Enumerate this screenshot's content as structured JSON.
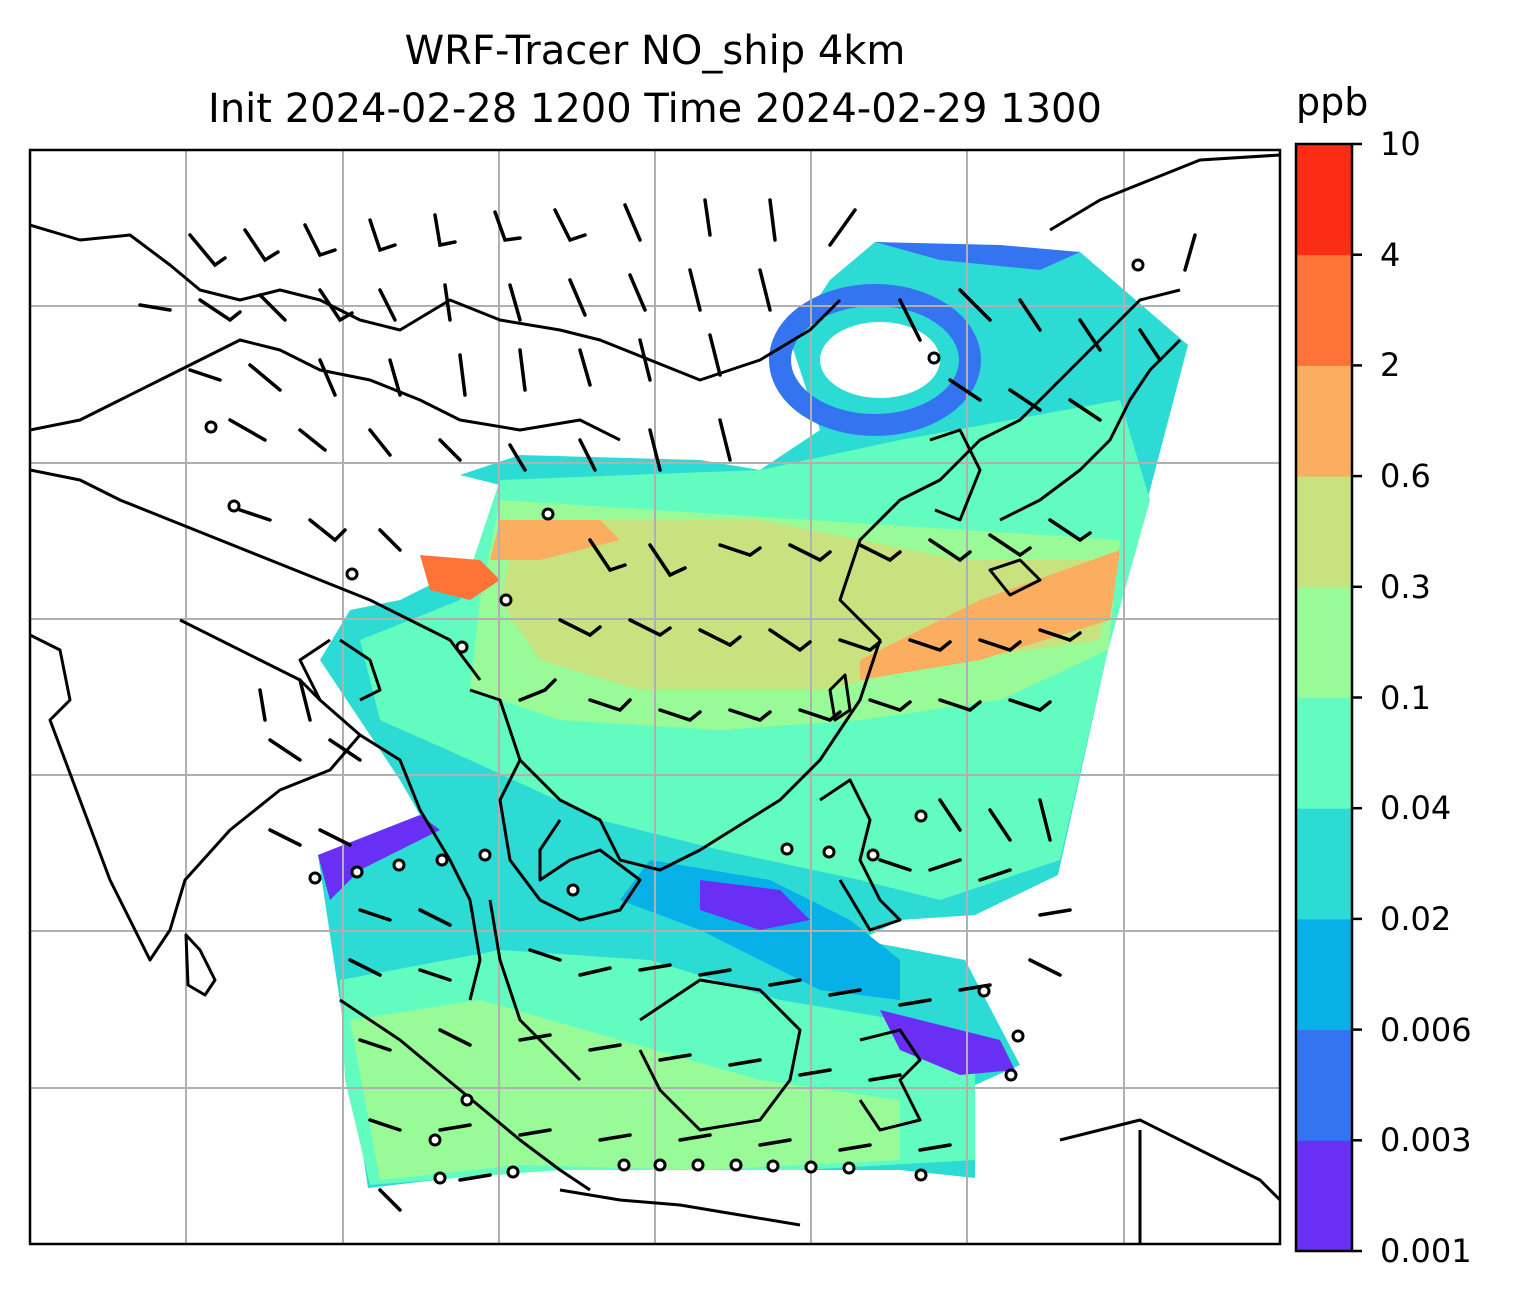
{
  "title": {
    "line1": "WRF-Tracer NO_ship 4km",
    "line2": "Init 2024-02-28 1200 Time 2024-02-29 1300"
  },
  "colorbar": {
    "unit": "ppb",
    "ticks": [
      "10",
      "4",
      "2",
      "0.6",
      "0.3",
      "0.1",
      "0.04",
      "0.02",
      "0.006",
      "0.003",
      "0.001"
    ],
    "colors": [
      "#6a2ff5",
      "#3574f0",
      "#08b0e8",
      "#2cdbd3",
      "#63fcc0",
      "#98fb97",
      "#c9e280",
      "#fbae5f",
      "#ff7338",
      "#fb2d15"
    ]
  },
  "map": {
    "frame_color": "#000000",
    "gridline_color": "#b0b0b0",
    "coastline_color": "#000000",
    "wind_barb_color": "#000000"
  }
}
